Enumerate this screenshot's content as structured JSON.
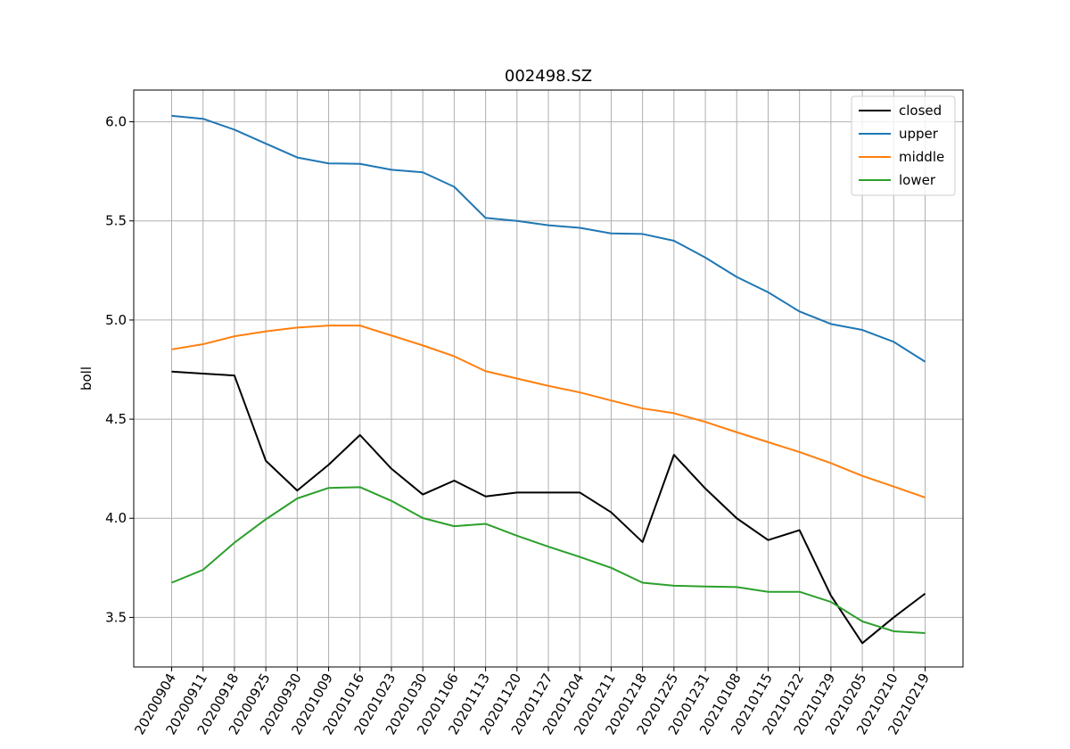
{
  "chart_data": {
    "type": "line",
    "title": "002498.SZ",
    "xlabel": "",
    "ylabel": "boll",
    "categories": [
      "20200904",
      "20200911",
      "20200918",
      "20200925",
      "20200930",
      "20201009",
      "20201016",
      "20201023",
      "20201030",
      "20201106",
      "20201113",
      "20201120",
      "20201127",
      "20201204",
      "20201211",
      "20201218",
      "20201225",
      "20201231",
      "20210108",
      "20210115",
      "20210122",
      "20210129",
      "20210205",
      "20210210",
      "20210219"
    ],
    "ylim": [
      3.25,
      6.16
    ],
    "yticks": [
      3.5,
      4.0,
      4.5,
      5.0,
      5.5,
      6.0
    ],
    "ytick_labels": [
      "3.5",
      "4.0",
      "4.5",
      "5.0",
      "5.5",
      "6.0"
    ],
    "grid": true,
    "legend_position": "top-right",
    "series": [
      {
        "name": "closed",
        "color": "#000000",
        "values": [
          4.74,
          4.73,
          4.72,
          4.29,
          4.14,
          4.27,
          4.42,
          4.25,
          4.12,
          4.19,
          4.11,
          4.13,
          4.13,
          4.13,
          4.03,
          3.88,
          4.32,
          4.15,
          4.0,
          3.89,
          3.94,
          3.61,
          3.37,
          3.5,
          3.62
        ]
      },
      {
        "name": "upper",
        "color": "#1f77b4",
        "values": [
          6.03,
          6.015,
          5.96,
          5.89,
          5.82,
          5.79,
          5.788,
          5.758,
          5.745,
          5.672,
          5.515,
          5.5,
          5.478,
          5.465,
          5.437,
          5.434,
          5.4,
          5.315,
          5.217,
          5.14,
          5.043,
          4.98,
          4.95,
          4.89,
          4.79
        ]
      },
      {
        "name": "middle",
        "color": "#ff7f0e",
        "values": [
          4.852,
          4.878,
          4.918,
          4.943,
          4.962,
          4.972,
          4.972,
          4.922,
          4.872,
          4.817,
          4.742,
          4.705,
          4.668,
          4.635,
          4.594,
          4.554,
          4.53,
          4.486,
          4.434,
          4.384,
          4.334,
          4.278,
          4.214,
          4.16,
          4.105
        ]
      },
      {
        "name": "lower",
        "color": "#2ca02c",
        "values": [
          3.675,
          3.74,
          3.877,
          3.995,
          4.1,
          4.153,
          4.157,
          4.088,
          4.001,
          3.96,
          3.972,
          3.912,
          3.857,
          3.805,
          3.75,
          3.675,
          3.66,
          3.656,
          3.653,
          3.629,
          3.629,
          3.578,
          3.48,
          3.43,
          3.421
        ]
      }
    ]
  }
}
